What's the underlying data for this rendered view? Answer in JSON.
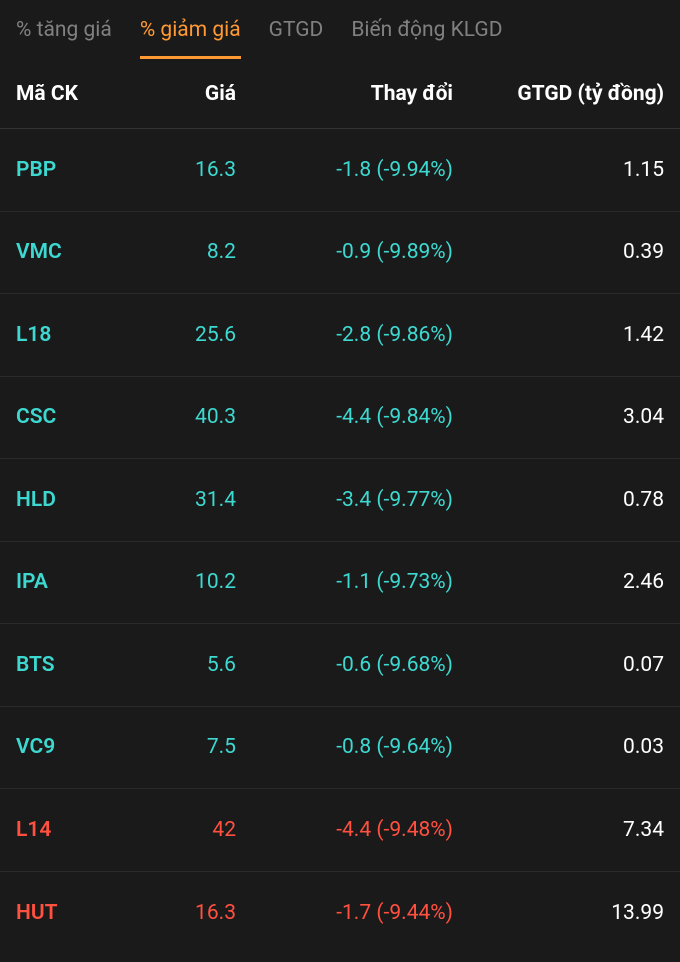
{
  "colors": {
    "background": "#1a1a1a",
    "text_default": "#ffffff",
    "text_muted": "#808080",
    "accent": "#ff9933",
    "down_teal": "#3dd9d1",
    "down_red": "#ff5040",
    "row_divider": "#2a2a2a"
  },
  "tabs": [
    {
      "label": "% tăng giá",
      "active": false
    },
    {
      "label": "% giảm giá",
      "active": true
    },
    {
      "label": "GTGD",
      "active": false
    },
    {
      "label": "Biến động KLGD",
      "active": false
    }
  ],
  "columns": {
    "symbol": "Mã CK",
    "price": "Giá",
    "change": "Thay đổi",
    "gtgd": "GTGD (tỷ đồng)"
  },
  "rows": [
    {
      "symbol": "PBP",
      "price": "16.3",
      "change": "-1.8 (-9.94%)",
      "gtgd": "1.15",
      "color": "#3dd9d1"
    },
    {
      "symbol": "VMC",
      "price": "8.2",
      "change": "-0.9 (-9.89%)",
      "gtgd": "0.39",
      "color": "#3dd9d1"
    },
    {
      "symbol": "L18",
      "price": "25.6",
      "change": "-2.8 (-9.86%)",
      "gtgd": "1.42",
      "color": "#3dd9d1"
    },
    {
      "symbol": "CSC",
      "price": "40.3",
      "change": "-4.4 (-9.84%)",
      "gtgd": "3.04",
      "color": "#3dd9d1"
    },
    {
      "symbol": "HLD",
      "price": "31.4",
      "change": "-3.4 (-9.77%)",
      "gtgd": "0.78",
      "color": "#3dd9d1"
    },
    {
      "symbol": "IPA",
      "price": "10.2",
      "change": "-1.1 (-9.73%)",
      "gtgd": "2.46",
      "color": "#3dd9d1"
    },
    {
      "symbol": "BTS",
      "price": "5.6",
      "change": "-0.6 (-9.68%)",
      "gtgd": "0.07",
      "color": "#3dd9d1"
    },
    {
      "symbol": "VC9",
      "price": "7.5",
      "change": "-0.8 (-9.64%)",
      "gtgd": "0.03",
      "color": "#3dd9d1"
    },
    {
      "symbol": "L14",
      "price": "42",
      "change": "-4.4 (-9.48%)",
      "gtgd": "7.34",
      "color": "#ff5040"
    },
    {
      "symbol": "HUT",
      "price": "16.3",
      "change": "-1.7 (-9.44%)",
      "gtgd": "13.99",
      "color": "#ff5040"
    }
  ]
}
